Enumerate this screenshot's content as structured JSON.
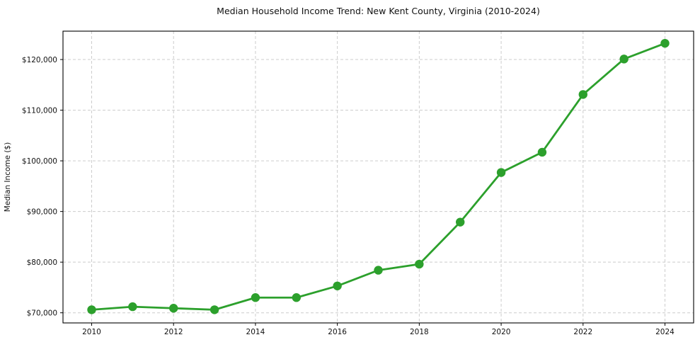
{
  "chart_data": {
    "type": "line",
    "title": "Median Household Income Trend: New Kent County, Virginia (2010-2024)",
    "xlabel": "",
    "ylabel": "Median Income ($)",
    "x": [
      2010,
      2011,
      2012,
      2013,
      2014,
      2015,
      2016,
      2017,
      2018,
      2019,
      2020,
      2021,
      2022,
      2023,
      2024
    ],
    "y": [
      70600,
      71200,
      70900,
      70600,
      73000,
      73000,
      75300,
      78400,
      79600,
      87900,
      97700,
      101700,
      113100,
      120100,
      123200
    ],
    "x_ticks": [
      2010,
      2012,
      2014,
      2016,
      2018,
      2020,
      2022,
      2024
    ],
    "x_tick_labels": [
      "2010",
      "2012",
      "2014",
      "2016",
      "2018",
      "2020",
      "2022",
      "2024"
    ],
    "y_ticks": [
      70000,
      80000,
      90000,
      100000,
      110000,
      120000
    ],
    "y_tick_labels": [
      "$70,000",
      "$80,000",
      "$90,000",
      "$100,000",
      "$110,000",
      "$120,000"
    ],
    "xlim": [
      2009.3,
      2024.7
    ],
    "ylim": [
      68000,
      125600
    ],
    "grid": true,
    "grid_style": "dashed",
    "legend": "none",
    "marker": "circle",
    "colors": {
      "line": "#2ca02c",
      "marker": "#2ca02c",
      "grid": "#cccccc",
      "axis": "#000000",
      "text": "#111111",
      "background": "#ffffff"
    }
  }
}
